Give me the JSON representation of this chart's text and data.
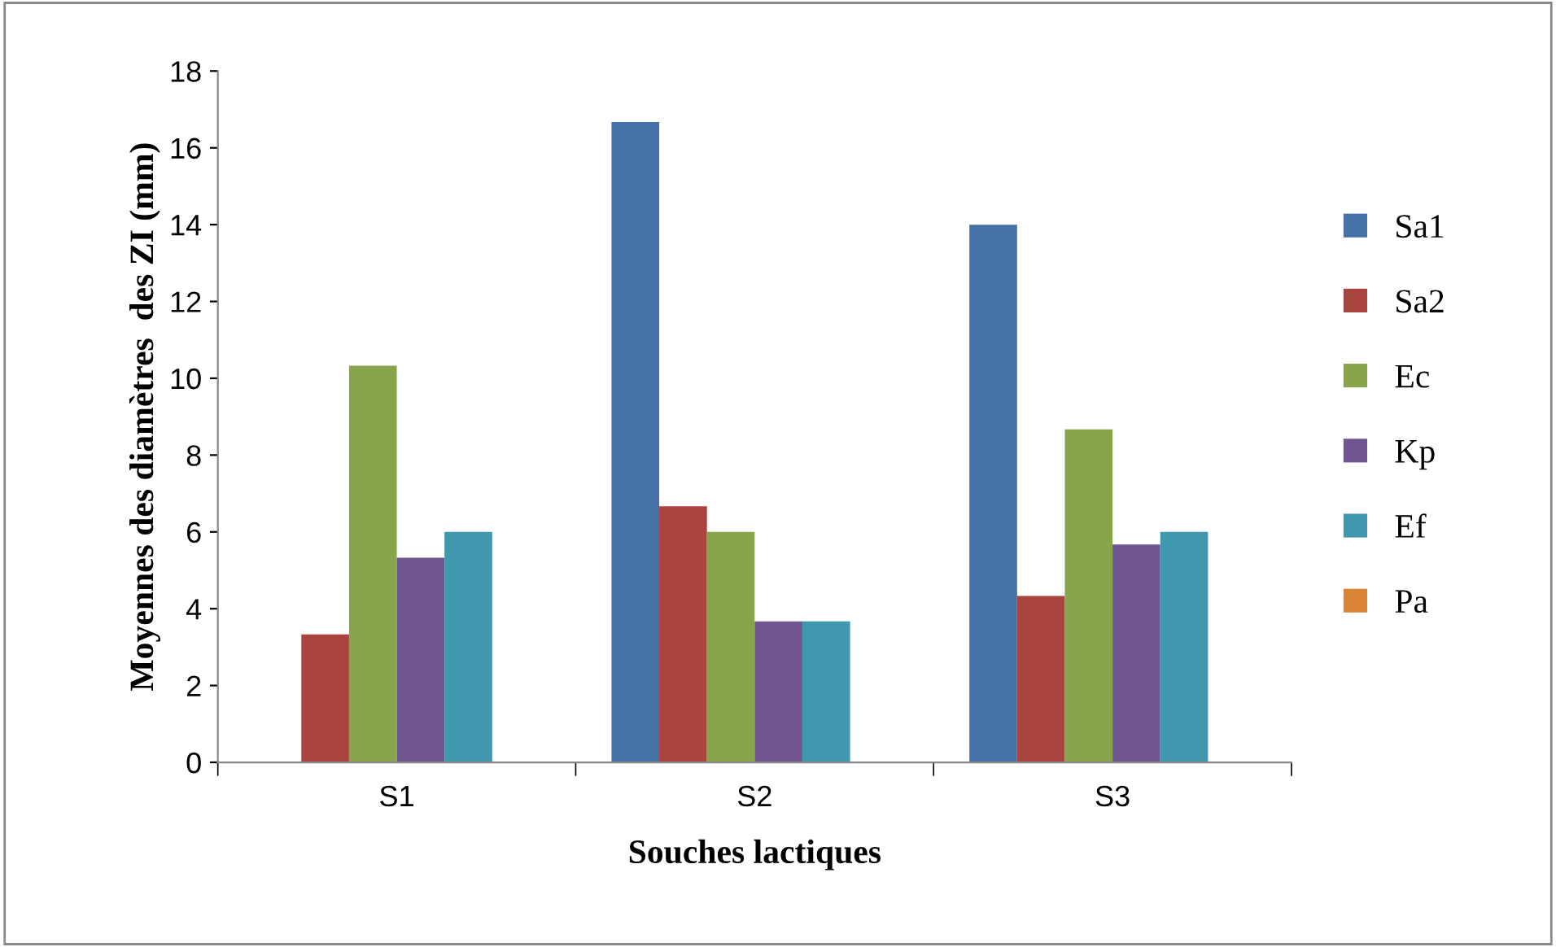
{
  "chart_data": {
    "type": "bar",
    "xlabel": "Souches lactiques",
    "ylabel": "Moyennes des diamètres  des ZI (mm)",
    "categories": [
      "S1",
      "S2",
      "S3"
    ],
    "series": [
      {
        "name": "Sa1",
        "color": "#4571a7",
        "values": [
          0,
          16.67,
          14
        ]
      },
      {
        "name": "Sa2",
        "color": "#a9443f",
        "values": [
          3.33,
          6.67,
          4.33
        ]
      },
      {
        "name": "Ec",
        "color": "#88a54c",
        "values": [
          10.33,
          6,
          8.67
        ]
      },
      {
        "name": "Kp",
        "color": "#705690",
        "values": [
          5.33,
          3.67,
          5.67
        ]
      },
      {
        "name": "Ef",
        "color": "#3f98ae",
        "values": [
          6,
          3.67,
          6
        ]
      },
      {
        "name": "Pa",
        "color": "#db8438",
        "values": [
          0,
          0,
          0
        ]
      }
    ],
    "ylim": [
      0,
      18
    ],
    "yticks": [
      0,
      2,
      4,
      6,
      8,
      10,
      12,
      14,
      16,
      18
    ],
    "grid": false,
    "legend": "right"
  }
}
